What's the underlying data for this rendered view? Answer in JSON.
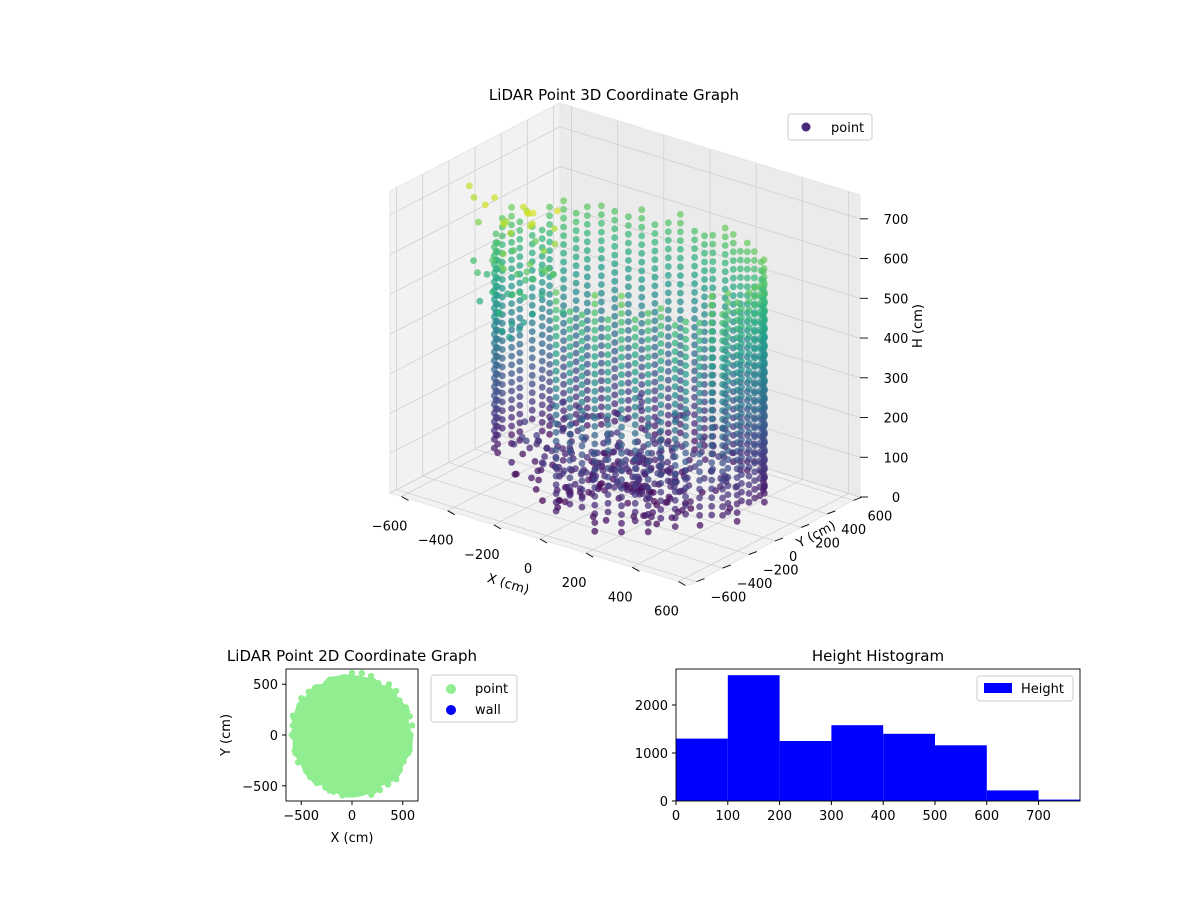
{
  "chart_data": [
    {
      "type": "scatter",
      "projection": "3d",
      "title": "LiDAR Point 3D Coordinate Graph",
      "xlabel": "X (cm)",
      "ylabel": "Y (cm)",
      "zlabel": "H (cm)",
      "xticks": [
        "−600",
        "−400",
        "−200",
        "0",
        "200",
        "400",
        "600"
      ],
      "yticks": [
        "−600",
        "−400",
        "−200",
        "0",
        "200",
        "400",
        "600"
      ],
      "zticks": [
        "0",
        "100",
        "200",
        "300",
        "400",
        "500",
        "600",
        "700"
      ],
      "xlim": [
        -650,
        650
      ],
      "ylim": [
        -650,
        650
      ],
      "zlim": [
        0,
        760
      ],
      "z_axis_inverted": true,
      "colormap": "viridis",
      "color_by": "height",
      "grid": true,
      "legend": {
        "placement": "upper-right",
        "entries": [
          {
            "label": "point",
            "color": "#482878"
          }
        ]
      },
      "series": [
        {
          "name": "point",
          "shape": "partial ring of vertical wall-point columns, open toward the front-left, with scattered low points at the front",
          "wall_radius": 520,
          "wall_height_range": [
            0,
            620
          ],
          "open_sector_deg": [
            200,
            265
          ],
          "stray_points_height_range": [
            450,
            760
          ]
        }
      ]
    },
    {
      "type": "scatter",
      "title": "LiDAR Point 2D Coordinate Graph",
      "xlabel": "X (cm)",
      "ylabel": "Y (cm)",
      "xticks": [
        "−500",
        "0",
        "500"
      ],
      "yticks": [
        "−500",
        "0",
        "500"
      ],
      "xlim": [
        -650,
        650
      ],
      "ylim": [
        -650,
        650
      ],
      "legend": {
        "placement": "outside-right",
        "entries": [
          {
            "label": "point",
            "color": "#90ee90"
          },
          {
            "label": "wall",
            "color": "#0000ff"
          }
        ]
      },
      "series": [
        {
          "name": "point",
          "color": "#90ee90",
          "region": "filled disc",
          "radius": 600
        },
        {
          "name": "wall",
          "color": "#0000ff",
          "values": []
        }
      ]
    },
    {
      "type": "bar",
      "subtype": "histogram",
      "title": "Height Histogram",
      "xticks": [
        "0",
        "100",
        "200",
        "300",
        "400",
        "500",
        "600",
        "700"
      ],
      "yticks": [
        "0",
        "1000",
        "2000"
      ],
      "xlim": [
        0,
        780
      ],
      "ylim": [
        0,
        2750
      ],
      "color": "#0000ff",
      "legend": {
        "placement": "upper-right",
        "entries": [
          {
            "label": "Height",
            "color": "#0000ff"
          }
        ]
      },
      "bins": [
        {
          "from": 0,
          "to": 100,
          "count": 1300
        },
        {
          "from": 100,
          "to": 200,
          "count": 2620
        },
        {
          "from": 200,
          "to": 300,
          "count": 1250
        },
        {
          "from": 300,
          "to": 400,
          "count": 1580
        },
        {
          "from": 400,
          "to": 500,
          "count": 1400
        },
        {
          "from": 500,
          "to": 600,
          "count": 1160
        },
        {
          "from": 600,
          "to": 700,
          "count": 220
        },
        {
          "from": 700,
          "to": 780,
          "count": 30
        }
      ]
    }
  ]
}
